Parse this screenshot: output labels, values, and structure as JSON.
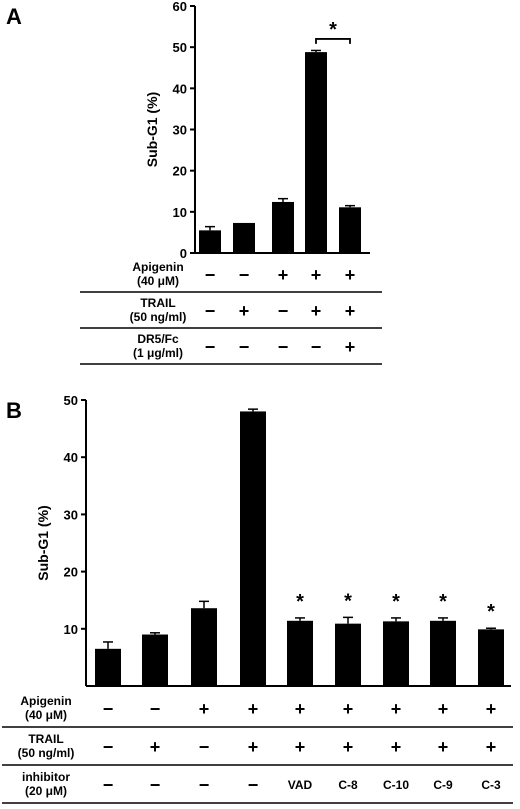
{
  "chart_data": [
    {
      "panel": "A",
      "type": "bar",
      "ylabel": "Sub-G1 (%)",
      "ylim": [
        0,
        60
      ],
      "yticks": [
        0,
        10,
        20,
        30,
        40,
        50,
        60
      ],
      "values": [
        5.5,
        7.3,
        12.4,
        48.8,
        11.1
      ],
      "errors": [
        0.9,
        0,
        0.8,
        0.4,
        0.4
      ],
      "significance": {
        "label": "*",
        "between": [
          3,
          4
        ]
      },
      "conditions": [
        {
          "label_lines": [
            "Apigenin",
            "(40 μM)"
          ],
          "values": [
            "-",
            "-",
            "+",
            "+",
            "+"
          ]
        },
        {
          "label_lines": [
            "TRAIL",
            "(50 ng/ml)"
          ],
          "values": [
            "-",
            "+",
            "-",
            "+",
            "+"
          ]
        },
        {
          "label_lines": [
            "DR5/Fc",
            "(1 μg/ml)"
          ],
          "values": [
            "-",
            "-",
            "-",
            "-",
            "+"
          ]
        }
      ]
    },
    {
      "panel": "B",
      "type": "bar",
      "ylabel": "Sub-G1 (%)",
      "ylim": [
        0,
        50
      ],
      "yticks": [
        10,
        20,
        30,
        40,
        50
      ],
      "values": [
        6.5,
        9.0,
        13.6,
        48.0,
        11.4,
        10.9,
        11.3,
        11.4,
        9.9
      ],
      "errors": [
        1.2,
        0.3,
        1.2,
        0.4,
        0.5,
        1.1,
        0.6,
        0.5,
        0.2
      ],
      "stars": [
        "",
        "",
        "",
        "",
        "*",
        "*",
        "*",
        "*",
        "*"
      ],
      "conditions": [
        {
          "label_lines": [
            "Apigenin",
            "(40 μM)"
          ],
          "values": [
            "-",
            "-",
            "+",
            "+",
            "+",
            "+",
            "+",
            "+",
            "+"
          ]
        },
        {
          "label_lines": [
            "TRAIL",
            "(50 ng/ml)"
          ],
          "values": [
            "-",
            "+",
            "-",
            "+",
            "+",
            "+",
            "+",
            "+",
            "+"
          ]
        },
        {
          "label_lines": [
            "inhibitor",
            "(20 μM)"
          ],
          "values": [
            "-",
            "-",
            "-",
            "-",
            "VAD",
            "C-8",
            "C-10",
            "C-9",
            "C-3"
          ]
        }
      ]
    }
  ]
}
